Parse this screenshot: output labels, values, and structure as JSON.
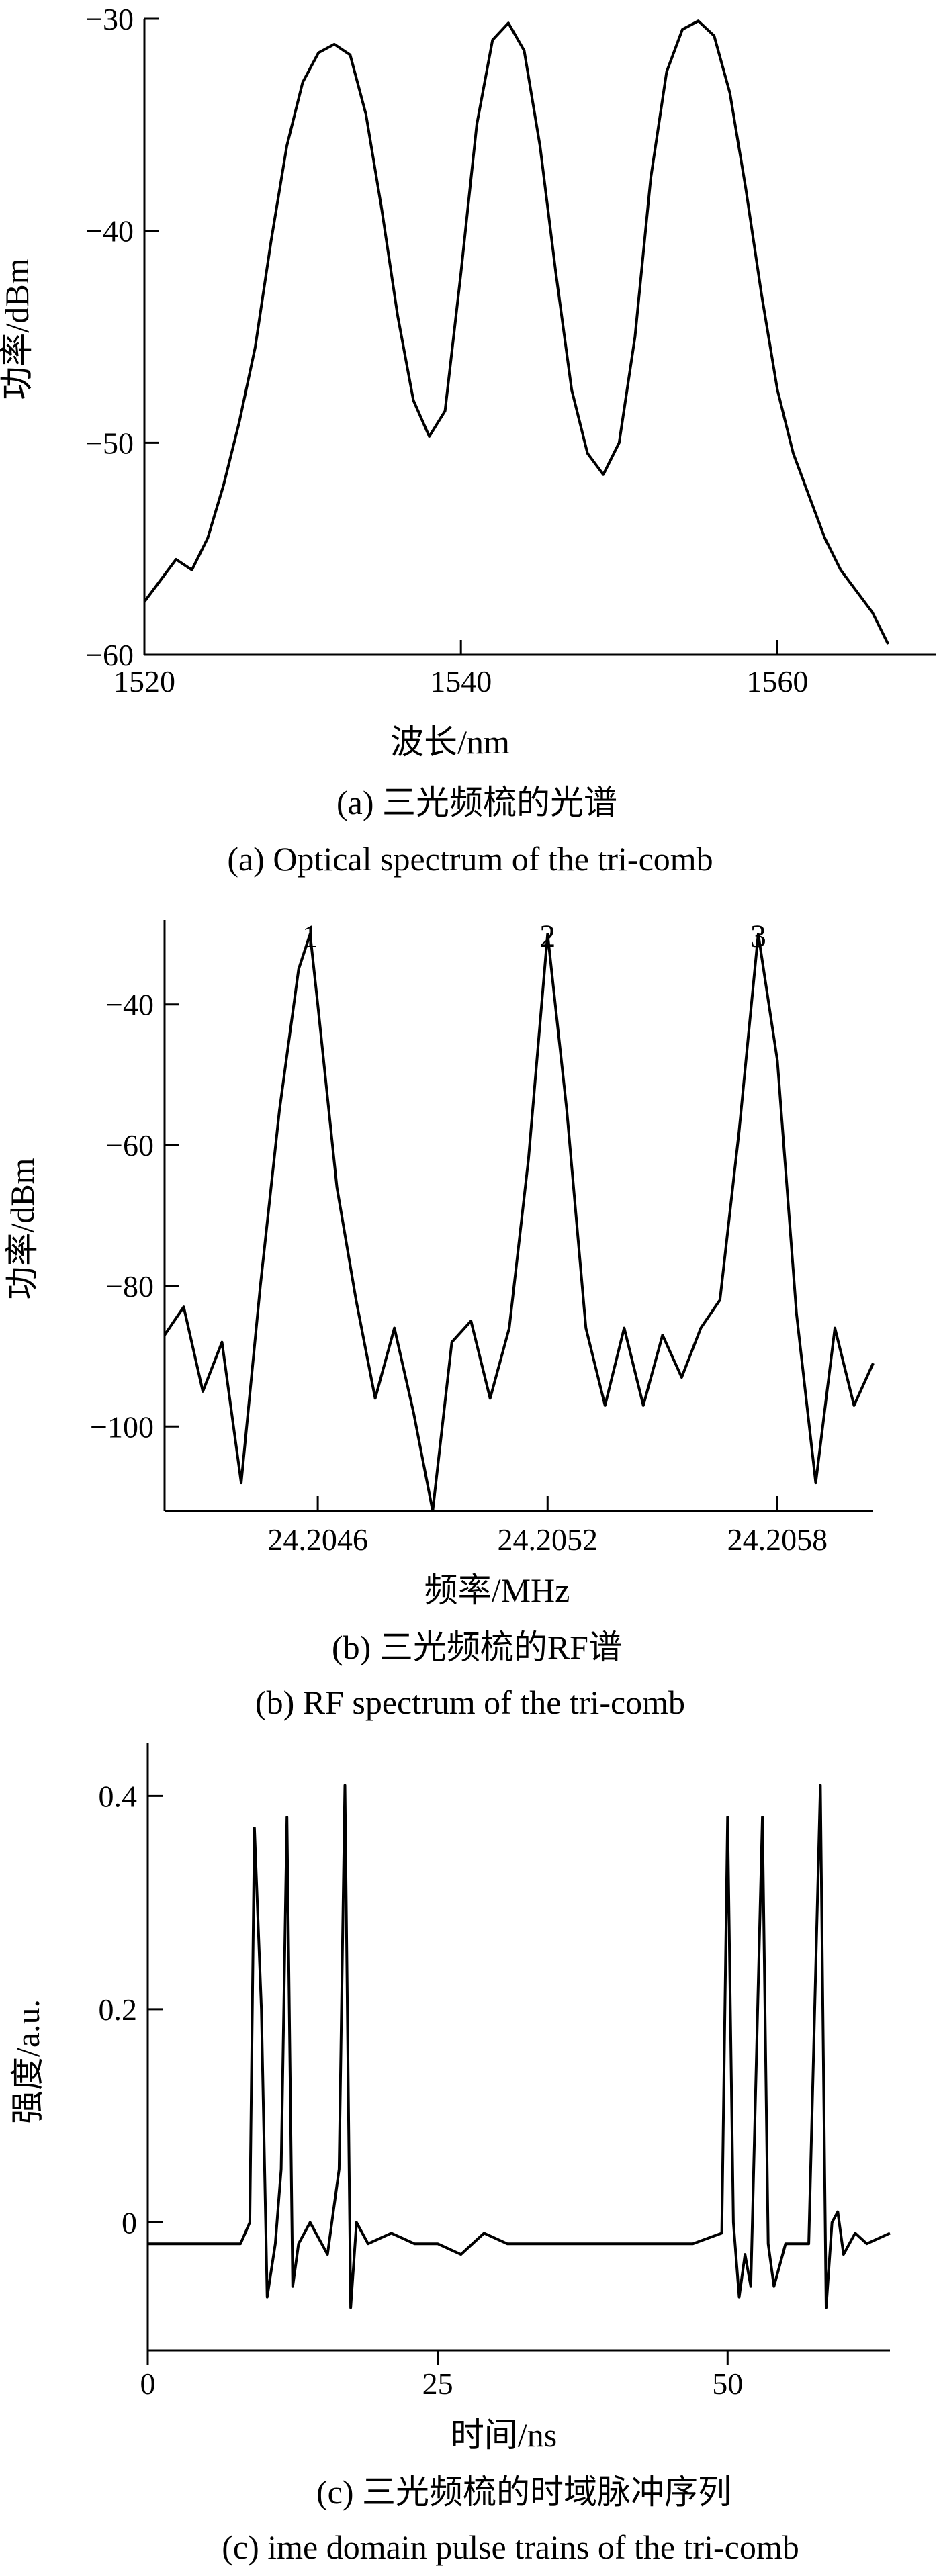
{
  "chart_data": [
    {
      "type": "line",
      "xlabel": "波长/nm",
      "ylabel": "功率/dBm",
      "caption_cn": "(a) 三光频梳的光谱",
      "caption_en": "(a) Optical spectrum of the tri-comb",
      "xlim": [
        1520,
        1570
      ],
      "ylim": [
        -60,
        -30
      ],
      "xticks": [
        1520,
        1540,
        1560
      ],
      "yticks": [
        -30,
        -40,
        -50,
        -60
      ],
      "series": [
        {
          "x": [
            1520,
            1521,
            1522,
            1523,
            1524,
            1525,
            1526,
            1527,
            1528,
            1529,
            1530,
            1531,
            1532,
            1533,
            1534,
            1535,
            1536,
            1537,
            1538,
            1539,
            1540,
            1541,
            1542,
            1543,
            1544,
            1545,
            1546,
            1547,
            1548,
            1549,
            1550,
            1551,
            1552,
            1553,
            1554,
            1555,
            1556,
            1557,
            1558,
            1559,
            1560,
            1561,
            1562,
            1563,
            1564,
            1565,
            1566,
            1567
          ],
          "y": [
            -57.5,
            -56.5,
            -55.5,
            -56,
            -54.5,
            -52,
            -49,
            -45.5,
            -40.5,
            -36,
            -33,
            -31.6,
            -31.2,
            -31.7,
            -34.5,
            -39,
            -44,
            -48,
            -49.7,
            -48.5,
            -42,
            -35,
            -31,
            -30.2,
            -31.5,
            -36,
            -42,
            -47.5,
            -50.5,
            -51.5,
            -50,
            -45,
            -37.5,
            -32.5,
            -30.5,
            -30.1,
            -30.8,
            -33.5,
            -38,
            -43,
            -47.5,
            -50.5,
            -52.5,
            -54.5,
            -56,
            -57,
            -58,
            -59.5
          ]
        }
      ]
    },
    {
      "type": "line",
      "xlabel": "频率/MHz",
      "ylabel": "功率/dBm",
      "caption_cn": "(b) 三光频梳的RF谱",
      "caption_en": "(b) RF spectrum of the tri-comb",
      "xlim": [
        24.2042,
        24.20605
      ],
      "ylim": [
        -112,
        -28
      ],
      "xticks": [
        24.2046,
        24.2052,
        24.2058
      ],
      "yticks": [
        -40,
        -60,
        -80,
        -100
      ],
      "peak_labels": [
        "1",
        "2",
        "3"
      ],
      "peak_x": [
        24.20458,
        24.2052,
        24.20575
      ],
      "series": [
        {
          "x": [
            24.2042,
            24.20425,
            24.2043,
            24.20435,
            24.2044,
            24.20445,
            24.2045,
            24.20455,
            24.20458,
            24.2046,
            24.20465,
            24.2047,
            24.20475,
            24.2048,
            24.20485,
            24.2049,
            24.20495,
            24.205,
            24.20505,
            24.2051,
            24.20515,
            24.2052,
            24.20525,
            24.2053,
            24.20535,
            24.2054,
            24.20545,
            24.2055,
            24.20555,
            24.2056,
            24.20565,
            24.2057,
            24.20575,
            24.2058,
            24.20585,
            24.2059,
            24.20595,
            24.206,
            24.20605
          ],
          "y": [
            -87,
            -83,
            -95,
            -88,
            -108,
            -80,
            -55,
            -35,
            -30,
            -40,
            -66,
            -82,
            -96,
            -86,
            -98,
            -112,
            -88,
            -85,
            -96,
            -86,
            -62,
            -30,
            -55,
            -86,
            -97,
            -86,
            -97,
            -87,
            -93,
            -86,
            -82,
            -58,
            -30,
            -48,
            -84,
            -108,
            -86,
            -97,
            -91
          ]
        }
      ]
    },
    {
      "type": "line",
      "xlabel": "时间/ns",
      "ylabel": "强度/a.u.",
      "caption_cn": "(c) 三光频梳的时域脉冲序列",
      "caption_en": "(c) ime domain pulse trains of the tri-comb",
      "xlim": [
        0,
        64
      ],
      "ylim": [
        -0.12,
        0.45
      ],
      "xticks": [
        0,
        25,
        50
      ],
      "yticks": [
        0.4,
        0.2,
        0.0
      ],
      "series": [
        {
          "x": [
            0,
            2,
            4,
            6,
            8,
            8.8,
            9.2,
            9.8,
            10.3,
            11,
            11.5,
            12,
            12.5,
            13,
            14,
            15.5,
            16.5,
            17,
            17.5,
            18,
            19,
            21,
            23,
            25,
            27,
            29,
            31,
            33,
            35,
            37,
            39,
            41,
            43,
            45,
            47,
            49.5,
            50,
            50.5,
            51,
            51.5,
            52,
            53,
            53.5,
            54,
            55,
            57,
            58,
            58.5,
            59,
            59.5,
            60,
            61,
            62,
            64
          ],
          "y": [
            -0.02,
            -0.02,
            -0.02,
            -0.02,
            -0.02,
            0.0,
            0.37,
            0.2,
            -0.07,
            -0.02,
            0.05,
            0.38,
            -0.06,
            -0.02,
            0.0,
            -0.03,
            0.05,
            0.41,
            -0.08,
            0.0,
            -0.02,
            -0.01,
            -0.02,
            -0.02,
            -0.03,
            -0.01,
            -0.02,
            -0.02,
            -0.02,
            -0.02,
            -0.02,
            -0.02,
            -0.02,
            -0.02,
            -0.02,
            -0.01,
            0.38,
            0.0,
            -0.07,
            -0.03,
            -0.06,
            0.38,
            -0.02,
            -0.06,
            -0.02,
            -0.02,
            0.41,
            -0.08,
            0.0,
            0.01,
            -0.03,
            -0.01,
            -0.02,
            -0.01
          ]
        }
      ]
    }
  ]
}
